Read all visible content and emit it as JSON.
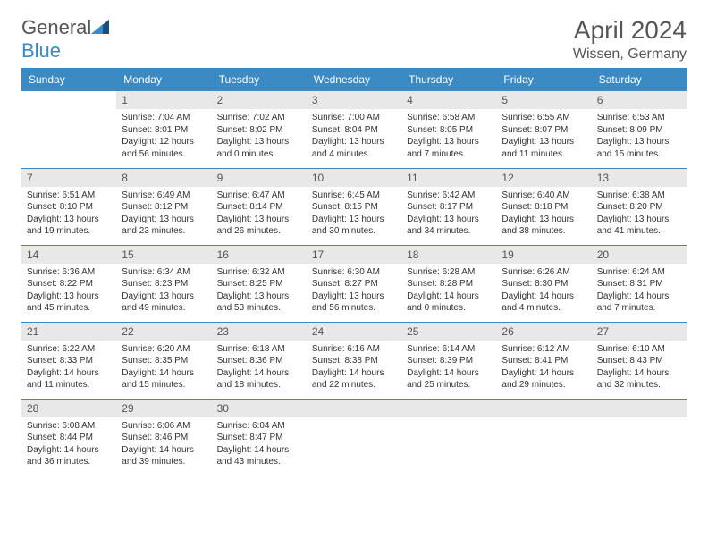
{
  "logo": {
    "text1": "General",
    "text2": "Blue"
  },
  "title": "April 2024",
  "location": "Wissen, Germany",
  "colors": {
    "header_bg": "#3b8ac4",
    "header_text": "#ffffff",
    "day_num_bg": "#e8e8e8",
    "border": "#3b8ac4",
    "text": "#333333",
    "title_text": "#555555"
  },
  "daysOfWeek": [
    "Sunday",
    "Monday",
    "Tuesday",
    "Wednesday",
    "Thursday",
    "Friday",
    "Saturday"
  ],
  "days": [
    {
      "n": 1,
      "sr": "7:04 AM",
      "ss": "8:01 PM",
      "dl": "12 hours and 56 minutes."
    },
    {
      "n": 2,
      "sr": "7:02 AM",
      "ss": "8:02 PM",
      "dl": "13 hours and 0 minutes."
    },
    {
      "n": 3,
      "sr": "7:00 AM",
      "ss": "8:04 PM",
      "dl": "13 hours and 4 minutes."
    },
    {
      "n": 4,
      "sr": "6:58 AM",
      "ss": "8:05 PM",
      "dl": "13 hours and 7 minutes."
    },
    {
      "n": 5,
      "sr": "6:55 AM",
      "ss": "8:07 PM",
      "dl": "13 hours and 11 minutes."
    },
    {
      "n": 6,
      "sr": "6:53 AM",
      "ss": "8:09 PM",
      "dl": "13 hours and 15 minutes."
    },
    {
      "n": 7,
      "sr": "6:51 AM",
      "ss": "8:10 PM",
      "dl": "13 hours and 19 minutes."
    },
    {
      "n": 8,
      "sr": "6:49 AM",
      "ss": "8:12 PM",
      "dl": "13 hours and 23 minutes."
    },
    {
      "n": 9,
      "sr": "6:47 AM",
      "ss": "8:14 PM",
      "dl": "13 hours and 26 minutes."
    },
    {
      "n": 10,
      "sr": "6:45 AM",
      "ss": "8:15 PM",
      "dl": "13 hours and 30 minutes."
    },
    {
      "n": 11,
      "sr": "6:42 AM",
      "ss": "8:17 PM",
      "dl": "13 hours and 34 minutes."
    },
    {
      "n": 12,
      "sr": "6:40 AM",
      "ss": "8:18 PM",
      "dl": "13 hours and 38 minutes."
    },
    {
      "n": 13,
      "sr": "6:38 AM",
      "ss": "8:20 PM",
      "dl": "13 hours and 41 minutes."
    },
    {
      "n": 14,
      "sr": "6:36 AM",
      "ss": "8:22 PM",
      "dl": "13 hours and 45 minutes."
    },
    {
      "n": 15,
      "sr": "6:34 AM",
      "ss": "8:23 PM",
      "dl": "13 hours and 49 minutes."
    },
    {
      "n": 16,
      "sr": "6:32 AM",
      "ss": "8:25 PM",
      "dl": "13 hours and 53 minutes."
    },
    {
      "n": 17,
      "sr": "6:30 AM",
      "ss": "8:27 PM",
      "dl": "13 hours and 56 minutes."
    },
    {
      "n": 18,
      "sr": "6:28 AM",
      "ss": "8:28 PM",
      "dl": "14 hours and 0 minutes."
    },
    {
      "n": 19,
      "sr": "6:26 AM",
      "ss": "8:30 PM",
      "dl": "14 hours and 4 minutes."
    },
    {
      "n": 20,
      "sr": "6:24 AM",
      "ss": "8:31 PM",
      "dl": "14 hours and 7 minutes."
    },
    {
      "n": 21,
      "sr": "6:22 AM",
      "ss": "8:33 PM",
      "dl": "14 hours and 11 minutes."
    },
    {
      "n": 22,
      "sr": "6:20 AM",
      "ss": "8:35 PM",
      "dl": "14 hours and 15 minutes."
    },
    {
      "n": 23,
      "sr": "6:18 AM",
      "ss": "8:36 PM",
      "dl": "14 hours and 18 minutes."
    },
    {
      "n": 24,
      "sr": "6:16 AM",
      "ss": "8:38 PM",
      "dl": "14 hours and 22 minutes."
    },
    {
      "n": 25,
      "sr": "6:14 AM",
      "ss": "8:39 PM",
      "dl": "14 hours and 25 minutes."
    },
    {
      "n": 26,
      "sr": "6:12 AM",
      "ss": "8:41 PM",
      "dl": "14 hours and 29 minutes."
    },
    {
      "n": 27,
      "sr": "6:10 AM",
      "ss": "8:43 PM",
      "dl": "14 hours and 32 minutes."
    },
    {
      "n": 28,
      "sr": "6:08 AM",
      "ss": "8:44 PM",
      "dl": "14 hours and 36 minutes."
    },
    {
      "n": 29,
      "sr": "6:06 AM",
      "ss": "8:46 PM",
      "dl": "14 hours and 39 minutes."
    },
    {
      "n": 30,
      "sr": "6:04 AM",
      "ss": "8:47 PM",
      "dl": "14 hours and 43 minutes."
    }
  ],
  "labels": {
    "sunrise": "Sunrise:",
    "sunset": "Sunset:",
    "daylight": "Daylight:"
  },
  "startDayOfWeek": 1
}
